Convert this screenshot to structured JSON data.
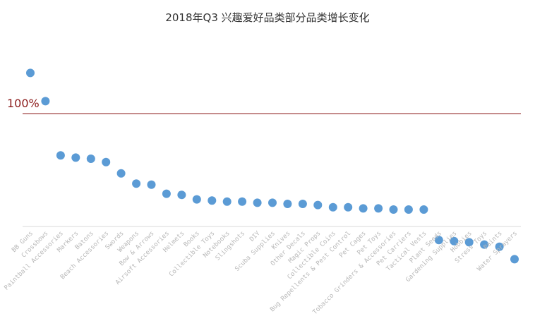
{
  "chart_data": {
    "type": "scatter",
    "title": "2018年Q3 兴趣爱好品类部分品类增长变化",
    "reference_line": {
      "value": 100,
      "label": "100%",
      "color": "#8b1a1a"
    },
    "marker_color": "#5b9bd5",
    "axis_color": "#d9d9d9",
    "label_color": "#b8b8b8",
    "grid": false,
    "legend": "none",
    "ylim": [
      -30,
      155
    ],
    "categories": [
      "BB Guns",
      "Crossbows",
      "Paintball Accessories",
      "Markers",
      "Batons",
      "Beach Accessories",
      "Swords",
      "Weapons",
      "Bow & Arrows",
      "Airsoft Accessories",
      "Helmets",
      "Books",
      "Collectible Toys",
      "Notebooks",
      "Slingshots",
      "DIY",
      "Scuba Supplies",
      "Knives",
      "Other Decals",
      "Magic Props",
      "Collectible Coins",
      "Bug Repellents & Pest Control",
      "Pet Cages",
      "Pet Toys",
      "Tobacco Grinders & Accessories",
      "Pet Carriers",
      "Tactical Vests",
      "Plant Seeds",
      "Gardening Supplies",
      "Hobbies",
      "Stress Toys",
      "Paints",
      "Water Sprayers"
    ],
    "values": [
      136,
      111,
      63,
      61,
      60,
      57,
      47,
      38,
      37,
      29,
      28,
      24,
      23,
      22,
      22,
      21,
      21,
      20,
      20,
      19,
      17,
      17,
      16,
      16,
      15,
      15,
      15,
      -12,
      -13,
      -14,
      -16,
      -18,
      -29
    ]
  }
}
